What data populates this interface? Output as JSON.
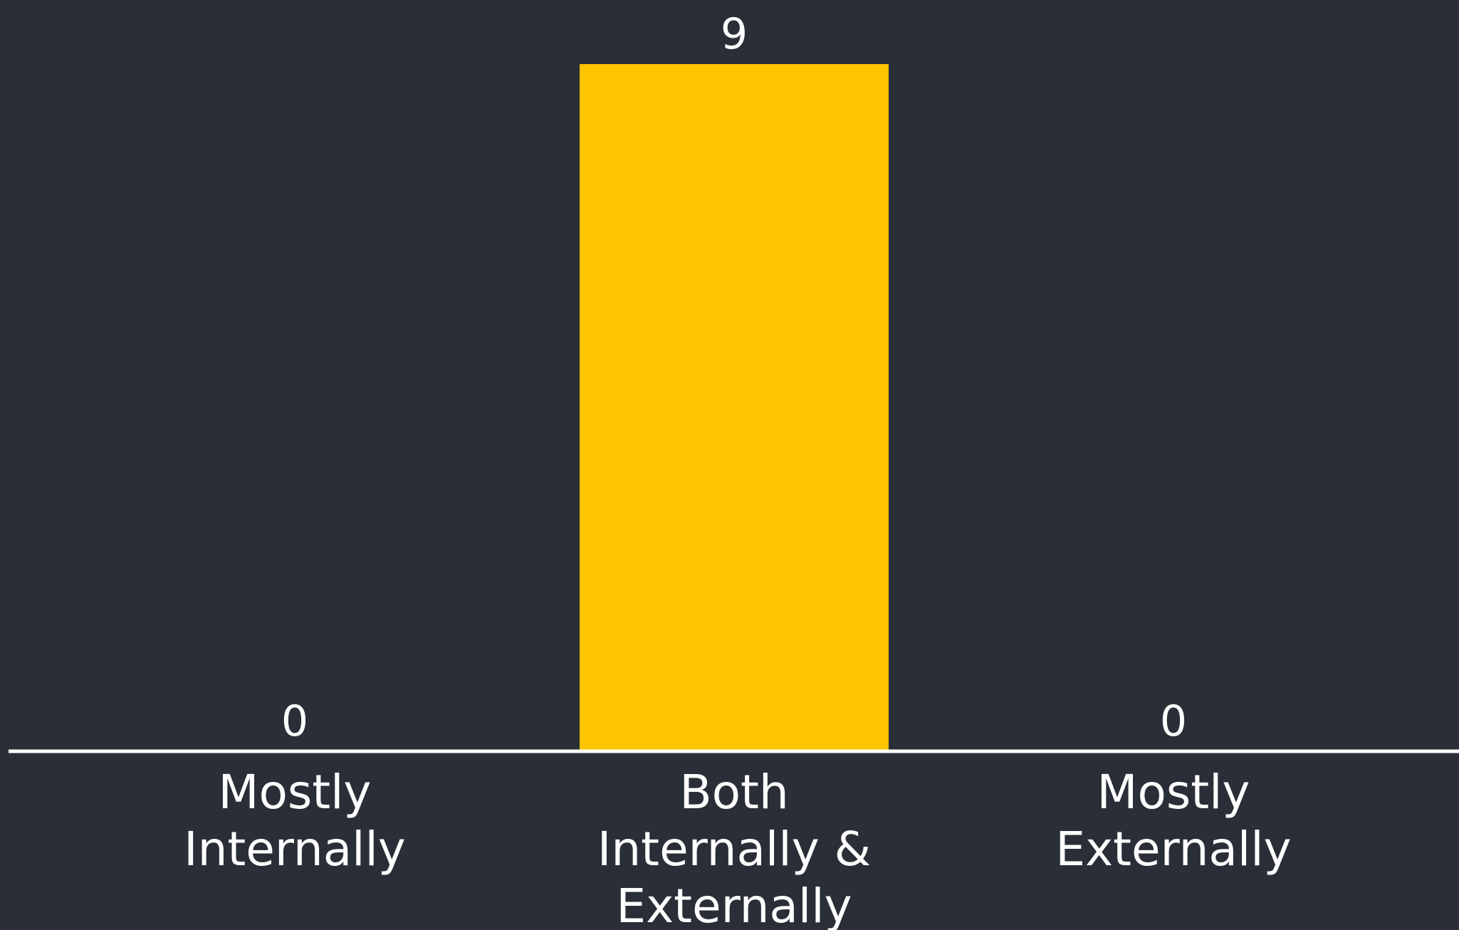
{
  "chart_data": {
    "type": "bar",
    "categories": [
      [
        "Mostly",
        "Internally"
      ],
      [
        "Both",
        "Internally &",
        "Externally"
      ],
      [
        "Mostly",
        "Externally"
      ]
    ],
    "values": [
      0,
      9,
      0
    ],
    "ylim": [
      0,
      9
    ],
    "grid": false,
    "legend": "none",
    "title": "",
    "xlabel": "",
    "ylabel": ""
  },
  "colors": {
    "background": "#2a2e37",
    "bar": "#ffc400",
    "axis": "#ffffff",
    "text": "#ffffff"
  }
}
